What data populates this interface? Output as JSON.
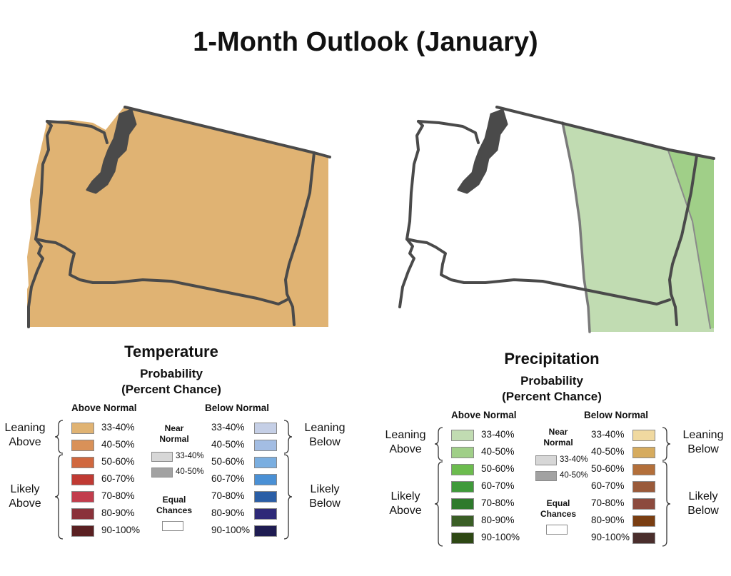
{
  "title": "1-Month Outlook (January)",
  "maps": [
    {
      "name": "temperature",
      "fill_color": "#e0b373",
      "shading": "Leaning Above 33-40%"
    },
    {
      "name": "precipitation",
      "shading": "Leaning Above 33-40% (central/east), 40-50% (far east)",
      "colors": [
        "#c1dcb2",
        "#a0cf88"
      ]
    }
  ],
  "legends": {
    "temperature": {
      "title": "Temperature",
      "subtitle_1": "Probability",
      "subtitle_2": "(Percent Chance)",
      "above_head": "Above Normal",
      "below_head": "Below Normal",
      "near_head_1": "Near",
      "near_head_2": "Normal",
      "equal_1": "Equal",
      "equal_2": "Chances",
      "leaning_above_1": "Leaning",
      "leaning_above_2": "Above",
      "likely_above_1": "Likely",
      "likely_above_2": "Above",
      "leaning_below_1": "Leaning",
      "leaning_below_2": "Below",
      "likely_below_1": "Likely",
      "likely_below_2": "Below",
      "above": [
        {
          "label": "33-40%",
          "color": "#e0b373"
        },
        {
          "label": "40-50%",
          "color": "#d99158"
        },
        {
          "label": "50-60%",
          "color": "#d0683f"
        },
        {
          "label": "60-70%",
          "color": "#c03a33"
        },
        {
          "label": "70-80%",
          "color": "#c23d4d"
        },
        {
          "label": "80-90%",
          "color": "#8a323a"
        },
        {
          "label": "90-100%",
          "color": "#5a2022"
        }
      ],
      "below": [
        {
          "label": "33-40%",
          "color": "#c5cfe6"
        },
        {
          "label": "40-50%",
          "color": "#a3bde3"
        },
        {
          "label": "50-60%",
          "color": "#7aaee0"
        },
        {
          "label": "60-70%",
          "color": "#4a90d5"
        },
        {
          "label": "70-80%",
          "color": "#2a5ea6"
        },
        {
          "label": "80-90%",
          "color": "#2e2978"
        },
        {
          "label": "90-100%",
          "color": "#1f1c52"
        }
      ],
      "near": [
        {
          "label": "33-40%",
          "color": "#d7d7d7"
        },
        {
          "label": "40-50%",
          "color": "#a2a2a2"
        }
      ]
    },
    "precipitation": {
      "title": "Precipitation",
      "subtitle_1": "Probability",
      "subtitle_2": "(Percent Chance)",
      "above_head": "Above Normal",
      "below_head": "Below Normal",
      "near_head_1": "Near",
      "near_head_2": "Normal",
      "equal_1": "Equal",
      "equal_2": "Chances",
      "leaning_above_1": "Leaning",
      "leaning_above_2": "Above",
      "likely_above_1": "Likely",
      "likely_above_2": "Above",
      "leaning_below_1": "Leaning",
      "leaning_below_2": "Below",
      "likely_below_1": "Likely",
      "likely_below_2": "Below",
      "above": [
        {
          "label": "33-40%",
          "color": "#c1dcb2"
        },
        {
          "label": "40-50%",
          "color": "#a0cf88"
        },
        {
          "label": "50-60%",
          "color": "#6cbc4e"
        },
        {
          "label": "60-70%",
          "color": "#3f9a3a"
        },
        {
          "label": "70-80%",
          "color": "#2e7a2c"
        },
        {
          "label": "80-90%",
          "color": "#3a5e26"
        },
        {
          "label": "90-100%",
          "color": "#2e4814"
        }
      ],
      "below": [
        {
          "label": "33-40%",
          "color": "#f0d9a0"
        },
        {
          "label": "40-50%",
          "color": "#d6ab5e"
        },
        {
          "label": "50-60%",
          "color": "#b36f3a"
        },
        {
          "label": "60-70%",
          "color": "#9a5a3a"
        },
        {
          "label": "70-80%",
          "color": "#8c4a3e"
        },
        {
          "label": "80-90%",
          "color": "#7a3e12"
        },
        {
          "label": "90-100%",
          "color": "#4a2e2c"
        }
      ],
      "near": [
        {
          "label": "33-40%",
          "color": "#d7d7d7"
        },
        {
          "label": "40-50%",
          "color": "#a2a2a2"
        }
      ]
    }
  }
}
